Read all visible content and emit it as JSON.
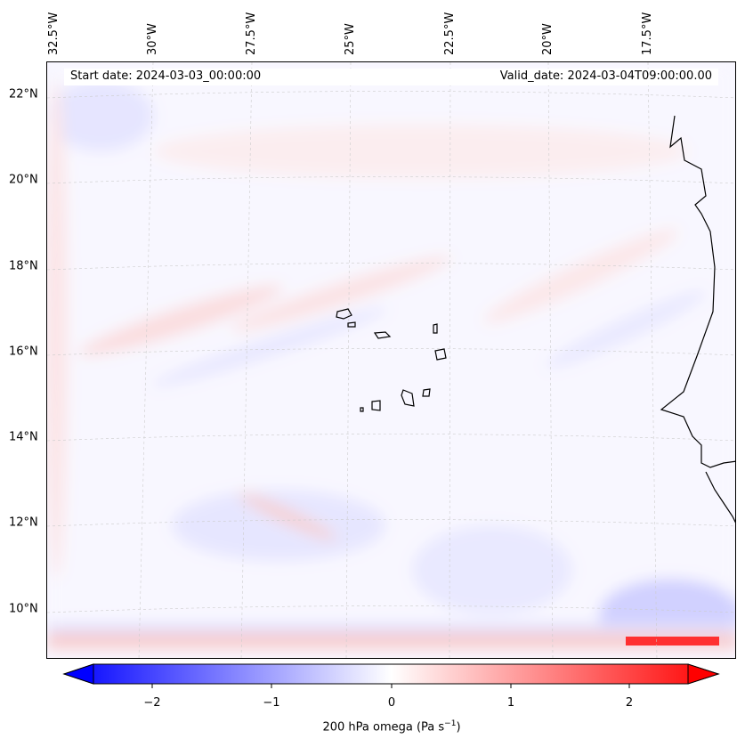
{
  "map": {
    "start_date": "Start date: 2024-03-03_00:00:00",
    "valid_date": "Valid_date: 2024-03-04T09:00:00.00",
    "lon_labels": [
      "32.5°W",
      "30°W",
      "27.5°W",
      "25°W",
      "22.5°W",
      "20°W",
      "17.5°W"
    ],
    "lat_labels": [
      "22°N",
      "20°N",
      "18°N",
      "16°N",
      "14°N",
      "12°N",
      "10°N"
    ]
  },
  "colorbar": {
    "label_prefix": "200 hPa omega (Pa s",
    "label_exp": "−1",
    "label_suffix": ")",
    "ticks": [
      "−2",
      "−1",
      "0",
      "1",
      "2"
    ],
    "range": [
      -2.5,
      2.5
    ],
    "colormap": "bwr",
    "min_color": "#0000ff",
    "mid_color": "#ffffff",
    "max_color": "#ff0000"
  }
}
